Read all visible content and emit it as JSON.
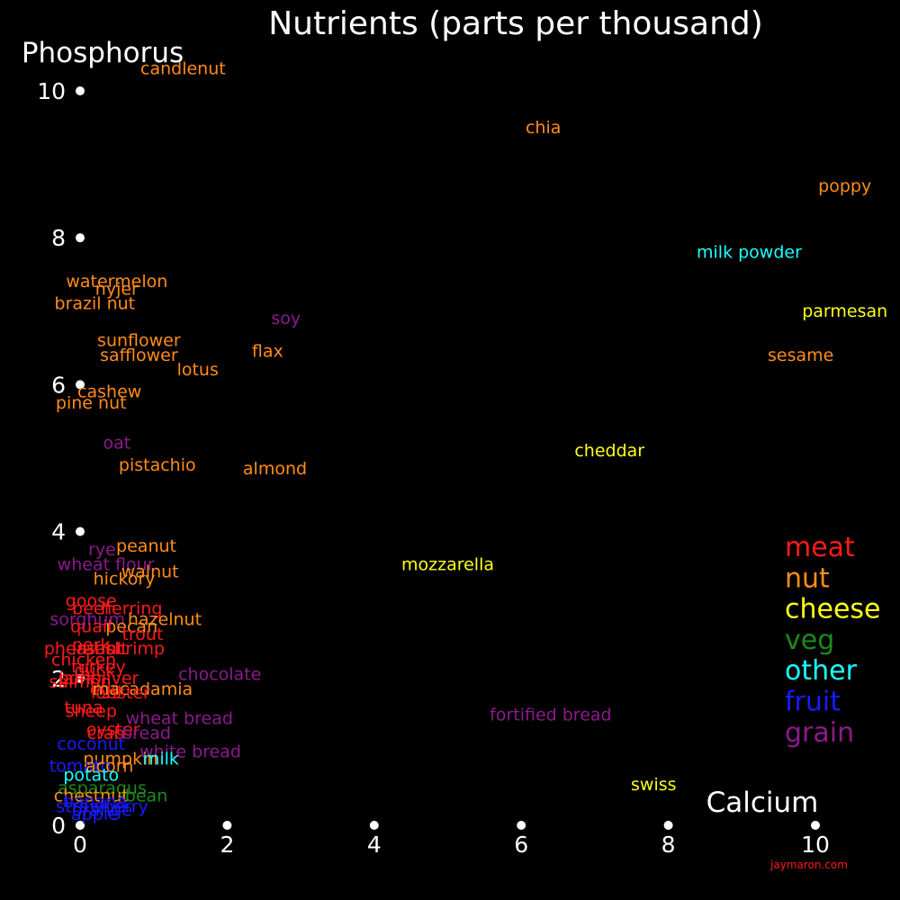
{
  "chart_data": {
    "type": "scatter",
    "title": "Nutrients (parts per thousand)",
    "xlabel": "Calcium",
    "ylabel": "Phosphorus",
    "xlim": [
      0,
      10
    ],
    "ylim": [
      0,
      10
    ],
    "xticks": [
      "0",
      "2",
      "4",
      "6",
      "8",
      "10"
    ],
    "yticks": [
      "0",
      "2",
      "4",
      "6",
      "8",
      "10"
    ],
    "credit": "jaymaron.com",
    "legend_position": "right",
    "grid": false,
    "groups": [
      {
        "name": "meat",
        "color": "#ff1a1a"
      },
      {
        "name": "nut",
        "color": "#ff8c1a"
      },
      {
        "name": "cheese",
        "color": "#ffff1a"
      },
      {
        "name": "veg",
        "color": "#1a8c1a"
      },
      {
        "name": "other",
        "color": "#1affff"
      },
      {
        "name": "fruit",
        "color": "#1a1aff"
      },
      {
        "name": "grain",
        "color": "#8c1a8c"
      }
    ],
    "points": [
      {
        "label": "candlenut",
        "group": "nut",
        "x": 1.4,
        "y": 10.3
      },
      {
        "label": "chia",
        "group": "nut",
        "x": 6.3,
        "y": 9.5
      },
      {
        "label": "poppy",
        "group": "nut",
        "x": 10.4,
        "y": 8.7
      },
      {
        "label": "milk powder",
        "group": "other",
        "x": 9.1,
        "y": 7.8
      },
      {
        "label": "parmesan",
        "group": "cheese",
        "x": 10.4,
        "y": 7.0
      },
      {
        "label": "sesame",
        "group": "nut",
        "x": 9.8,
        "y": 6.4
      },
      {
        "label": "watermelon",
        "group": "nut",
        "x": 0.5,
        "y": 7.4
      },
      {
        "label": "nyjer",
        "group": "nut",
        "x": 0.5,
        "y": 7.3
      },
      {
        "label": "brazil nut",
        "group": "nut",
        "x": 0.2,
        "y": 7.1
      },
      {
        "label": "soy",
        "group": "grain",
        "x": 2.8,
        "y": 6.9
      },
      {
        "label": "sunflower",
        "group": "nut",
        "x": 0.8,
        "y": 6.6
      },
      {
        "label": "safflower",
        "group": "nut",
        "x": 0.8,
        "y": 6.4
      },
      {
        "label": "flax",
        "group": "nut",
        "x": 2.55,
        "y": 6.45
      },
      {
        "label": "lotus",
        "group": "nut",
        "x": 1.6,
        "y": 6.2
      },
      {
        "label": "cashew",
        "group": "nut",
        "x": 0.4,
        "y": 5.9
      },
      {
        "label": "pine nut",
        "group": "nut",
        "x": 0.15,
        "y": 5.75
      },
      {
        "label": "oat",
        "group": "grain",
        "x": 0.5,
        "y": 5.2
      },
      {
        "label": "pistachio",
        "group": "nut",
        "x": 1.05,
        "y": 4.9
      },
      {
        "label": "almond",
        "group": "nut",
        "x": 2.65,
        "y": 4.85
      },
      {
        "label": "cheddar",
        "group": "cheese",
        "x": 7.2,
        "y": 5.1
      },
      {
        "label": "mozzarella",
        "group": "cheese",
        "x": 5.0,
        "y": 3.55
      },
      {
        "label": "peanut",
        "group": "nut",
        "x": 0.9,
        "y": 3.8
      },
      {
        "label": "rye",
        "group": "grain",
        "x": 0.3,
        "y": 3.75
      },
      {
        "label": "wheat flour",
        "group": "grain",
        "x": 0.35,
        "y": 3.55
      },
      {
        "label": "walnut",
        "group": "nut",
        "x": 0.95,
        "y": 3.45
      },
      {
        "label": "hickory",
        "group": "nut",
        "x": 0.6,
        "y": 3.35
      },
      {
        "label": "goose",
        "group": "meat",
        "x": 0.15,
        "y": 3.05
      },
      {
        "label": "beef",
        "group": "meat",
        "x": 0.15,
        "y": 2.95
      },
      {
        "label": "herring",
        "group": "meat",
        "x": 0.7,
        "y": 2.95
      },
      {
        "label": "sorghum",
        "group": "grain",
        "x": 0.1,
        "y": 2.8
      },
      {
        "label": "hazelnut",
        "group": "nut",
        "x": 1.15,
        "y": 2.8
      },
      {
        "label": "pecan",
        "group": "nut",
        "x": 0.7,
        "y": 2.7
      },
      {
        "label": "quail",
        "group": "meat",
        "x": 0.15,
        "y": 2.7
      },
      {
        "label": "trout",
        "group": "meat",
        "x": 0.85,
        "y": 2.6
      },
      {
        "label": "pork",
        "group": "meat",
        "x": 0.15,
        "y": 2.45
      },
      {
        "label": "shrimp",
        "group": "meat",
        "x": 0.75,
        "y": 2.4
      },
      {
        "label": "pheasant",
        "group": "meat",
        "x": 0.05,
        "y": 2.4
      },
      {
        "label": "rabbit",
        "group": "meat",
        "x": 0.3,
        "y": 2.4
      },
      {
        "label": "chicken",
        "group": "meat",
        "x": 0.05,
        "y": 2.25
      },
      {
        "label": "turkey",
        "group": "meat",
        "x": 0.25,
        "y": 2.15
      },
      {
        "label": "duck",
        "group": "meat",
        "x": 0.2,
        "y": 2.1
      },
      {
        "label": "chocolate",
        "group": "grain",
        "x": 1.9,
        "y": 2.05
      },
      {
        "label": "lamb",
        "group": "meat",
        "x": 0.0,
        "y": 2.0
      },
      {
        "label": "pork liver",
        "group": "meat",
        "x": 0.25,
        "y": 2.0
      },
      {
        "label": "salmon",
        "group": "meat",
        "x": 0.0,
        "y": 1.95
      },
      {
        "label": "egg",
        "group": "meat",
        "x": 0.35,
        "y": 1.85
      },
      {
        "label": "macadamia",
        "group": "nut",
        "x": 0.85,
        "y": 1.85
      },
      {
        "label": "lobster",
        "group": "meat",
        "x": 0.55,
        "y": 1.8
      },
      {
        "label": "tuna",
        "group": "meat",
        "x": 0.05,
        "y": 1.6
      },
      {
        "label": "sheep",
        "group": "meat",
        "x": 0.15,
        "y": 1.55
      },
      {
        "label": "wheat bread",
        "group": "grain",
        "x": 1.35,
        "y": 1.45
      },
      {
        "label": "fortified bread",
        "group": "grain",
        "x": 6.4,
        "y": 1.5
      },
      {
        "label": "oyster",
        "group": "meat",
        "x": 0.45,
        "y": 1.3
      },
      {
        "label": "crab",
        "group": "meat",
        "x": 0.35,
        "y": 1.25
      },
      {
        "label": "bread",
        "group": "grain",
        "x": 0.9,
        "y": 1.25
      },
      {
        "label": "coconut",
        "group": "fruit",
        "x": 0.15,
        "y": 1.1
      },
      {
        "label": "white bread",
        "group": "grain",
        "x": 1.5,
        "y": 1.0
      },
      {
        "label": "pumpkin",
        "group": "nut",
        "x": 0.55,
        "y": 0.9
      },
      {
        "label": "milk",
        "group": "other",
        "x": 1.1,
        "y": 0.9
      },
      {
        "label": "tomato",
        "group": "fruit",
        "x": 0.0,
        "y": 0.8
      },
      {
        "label": "acorn",
        "group": "nut",
        "x": 0.4,
        "y": 0.8
      },
      {
        "label": "potato",
        "group": "other",
        "x": 0.15,
        "y": 0.68
      },
      {
        "label": "swiss",
        "group": "cheese",
        "x": 7.8,
        "y": 0.55
      },
      {
        "label": "asparagus",
        "group": "veg",
        "x": 0.3,
        "y": 0.5
      },
      {
        "label": "chestnut",
        "group": "nut",
        "x": 0.15,
        "y": 0.4
      },
      {
        "label": "bean",
        "group": "veg",
        "x": 0.9,
        "y": 0.4
      },
      {
        "label": "banana",
        "group": "fruit",
        "x": 0.2,
        "y": 0.32
      },
      {
        "label": "strawberry",
        "group": "fruit",
        "x": 0.3,
        "y": 0.25
      },
      {
        "label": "orange",
        "group": "fruit",
        "x": 0.3,
        "y": 0.2
      },
      {
        "label": "apple",
        "group": "fruit",
        "x": 0.2,
        "y": 0.15
      }
    ]
  }
}
